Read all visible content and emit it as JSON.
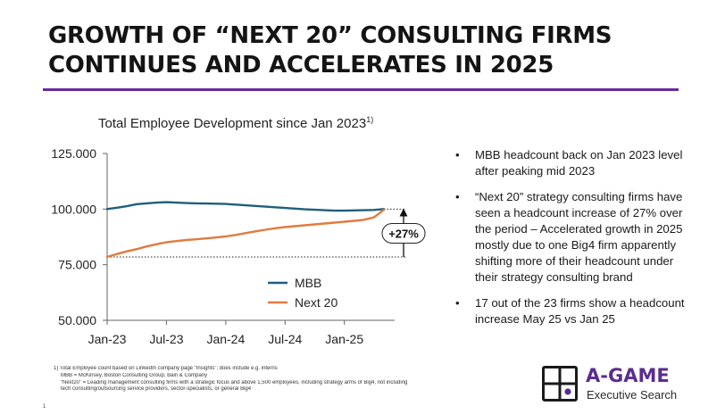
{
  "header": {
    "title_line1": "GROWTH OF “NEXT 20” CONSULTING FIRMS",
    "title_line2": "CONTINUES AND ACCELERATES IN 2025",
    "rule_color": "#6a2b9c"
  },
  "chart_data": {
    "type": "line",
    "subtitle": "Total Employee Development since Jan 2023",
    "subtitle_footnote_mark": "1)",
    "x": [
      "2023-01",
      "2023-02",
      "2023-03",
      "2023-04",
      "2023-05",
      "2023-06",
      "2023-07",
      "2023-08",
      "2023-09",
      "2023-10",
      "2023-11",
      "2023-12",
      "2024-01",
      "2024-02",
      "2024-03",
      "2024-04",
      "2024-05",
      "2024-06",
      "2024-07",
      "2024-08",
      "2024-09",
      "2024-10",
      "2024-11",
      "2024-12",
      "2025-01",
      "2025-02",
      "2025-03",
      "2025-04",
      "2025-05"
    ],
    "x_tick_labels": [
      "Jan-23",
      "Jul-23",
      "Jan-24",
      "Jul-24",
      "Jan-25"
    ],
    "x_tick_values": [
      "2023-01",
      "2023-07",
      "2024-01",
      "2024-07",
      "2025-01"
    ],
    "y_tick_labels": [
      "125.000",
      "100.000",
      "75.000",
      "50.000"
    ],
    "y_tick_values": [
      125000,
      100000,
      75000,
      50000
    ],
    "ylim": [
      50000,
      125000
    ],
    "xlabel": "",
    "ylabel": "",
    "grid": false,
    "legend_position": "lower-right",
    "series": [
      {
        "name": "MBB",
        "color": "#1f5f7a",
        "values": [
          100000,
          100600,
          101300,
          102200,
          102600,
          102900,
          103100,
          102900,
          102700,
          102600,
          102500,
          102400,
          102300,
          102000,
          101700,
          101400,
          101100,
          100800,
          100500,
          100200,
          99900,
          99700,
          99500,
          99300,
          99300,
          99400,
          99500,
          99600,
          100000
        ]
      },
      {
        "name": "Next 20",
        "color": "#e07b3f",
        "values": [
          78500,
          79800,
          81000,
          82000,
          83200,
          84200,
          85100,
          85600,
          86100,
          86400,
          86800,
          87200,
          87700,
          88400,
          89200,
          90000,
          90700,
          91400,
          91900,
          92300,
          92700,
          93100,
          93500,
          93900,
          94300,
          94700,
          95200,
          96300,
          99700
        ]
      }
    ],
    "annotation": {
      "label": "+27%",
      "from_value": 78500,
      "to_value": 99700,
      "position": "2025-05"
    }
  },
  "bullets": [
    "MBB headcount back on Jan 2023 level after peaking mid 2023",
    "“Next 20” strategy consulting firms have seen a headcount increase of 27% over the period – Accelerated growth in 2025 mostly due to one Big4 firm apparently shifting more of their headcount under their strategy consulting brand",
    "17 out of the 23 firms show a headcount increase May 25 vs Jan 25"
  ],
  "footnotes": [
    "1) Total Employee count based on LinkedIn company page “Insights”; does include e.g. interns",
    "MBB = McKinsey, Boston Consulting Group, Bain & Company",
    "“Next20” = Leading management consulting firms with a strategic focus and above 1,500 employees, including strategy arms of Big4, not including",
    "tech consulting/outsourcing service providers, sector-specialists, or general Big4"
  ],
  "page_number": "1",
  "brand": {
    "name": "A-GAME",
    "tagline": "Executive Search",
    "color": "#5b2d8e",
    "icon": "grid-logo-icon"
  }
}
